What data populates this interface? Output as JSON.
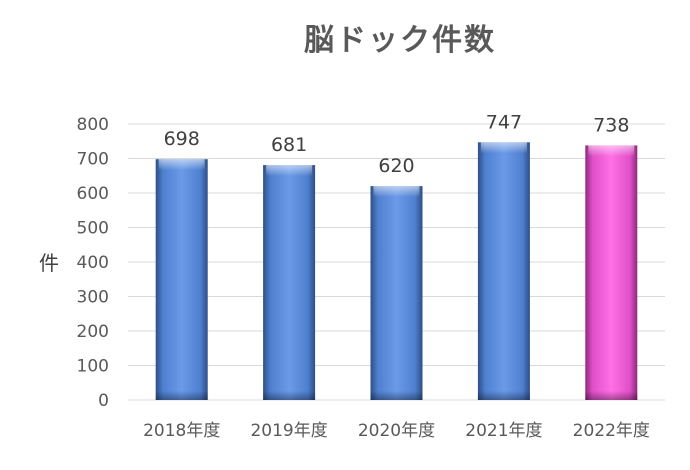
{
  "chart_data": {
    "type": "bar",
    "title": "脳ドック件数",
    "xlabel": "",
    "ylabel": "件",
    "categories": [
      "2018年度",
      "2019年度",
      "2020年度",
      "2021年度",
      "2022年度"
    ],
    "values": [
      698,
      681,
      620,
      747,
      738
    ],
    "ylim": [
      0,
      800
    ],
    "yticks": [
      0,
      100,
      200,
      300,
      400,
      500,
      600,
      700,
      800
    ],
    "grid": true,
    "legend": "none",
    "data_labels": true,
    "colors": {
      "default_bar": "#5b8fdc",
      "highlight_bar": "#f25ad6",
      "highlight_index": 4
    }
  }
}
